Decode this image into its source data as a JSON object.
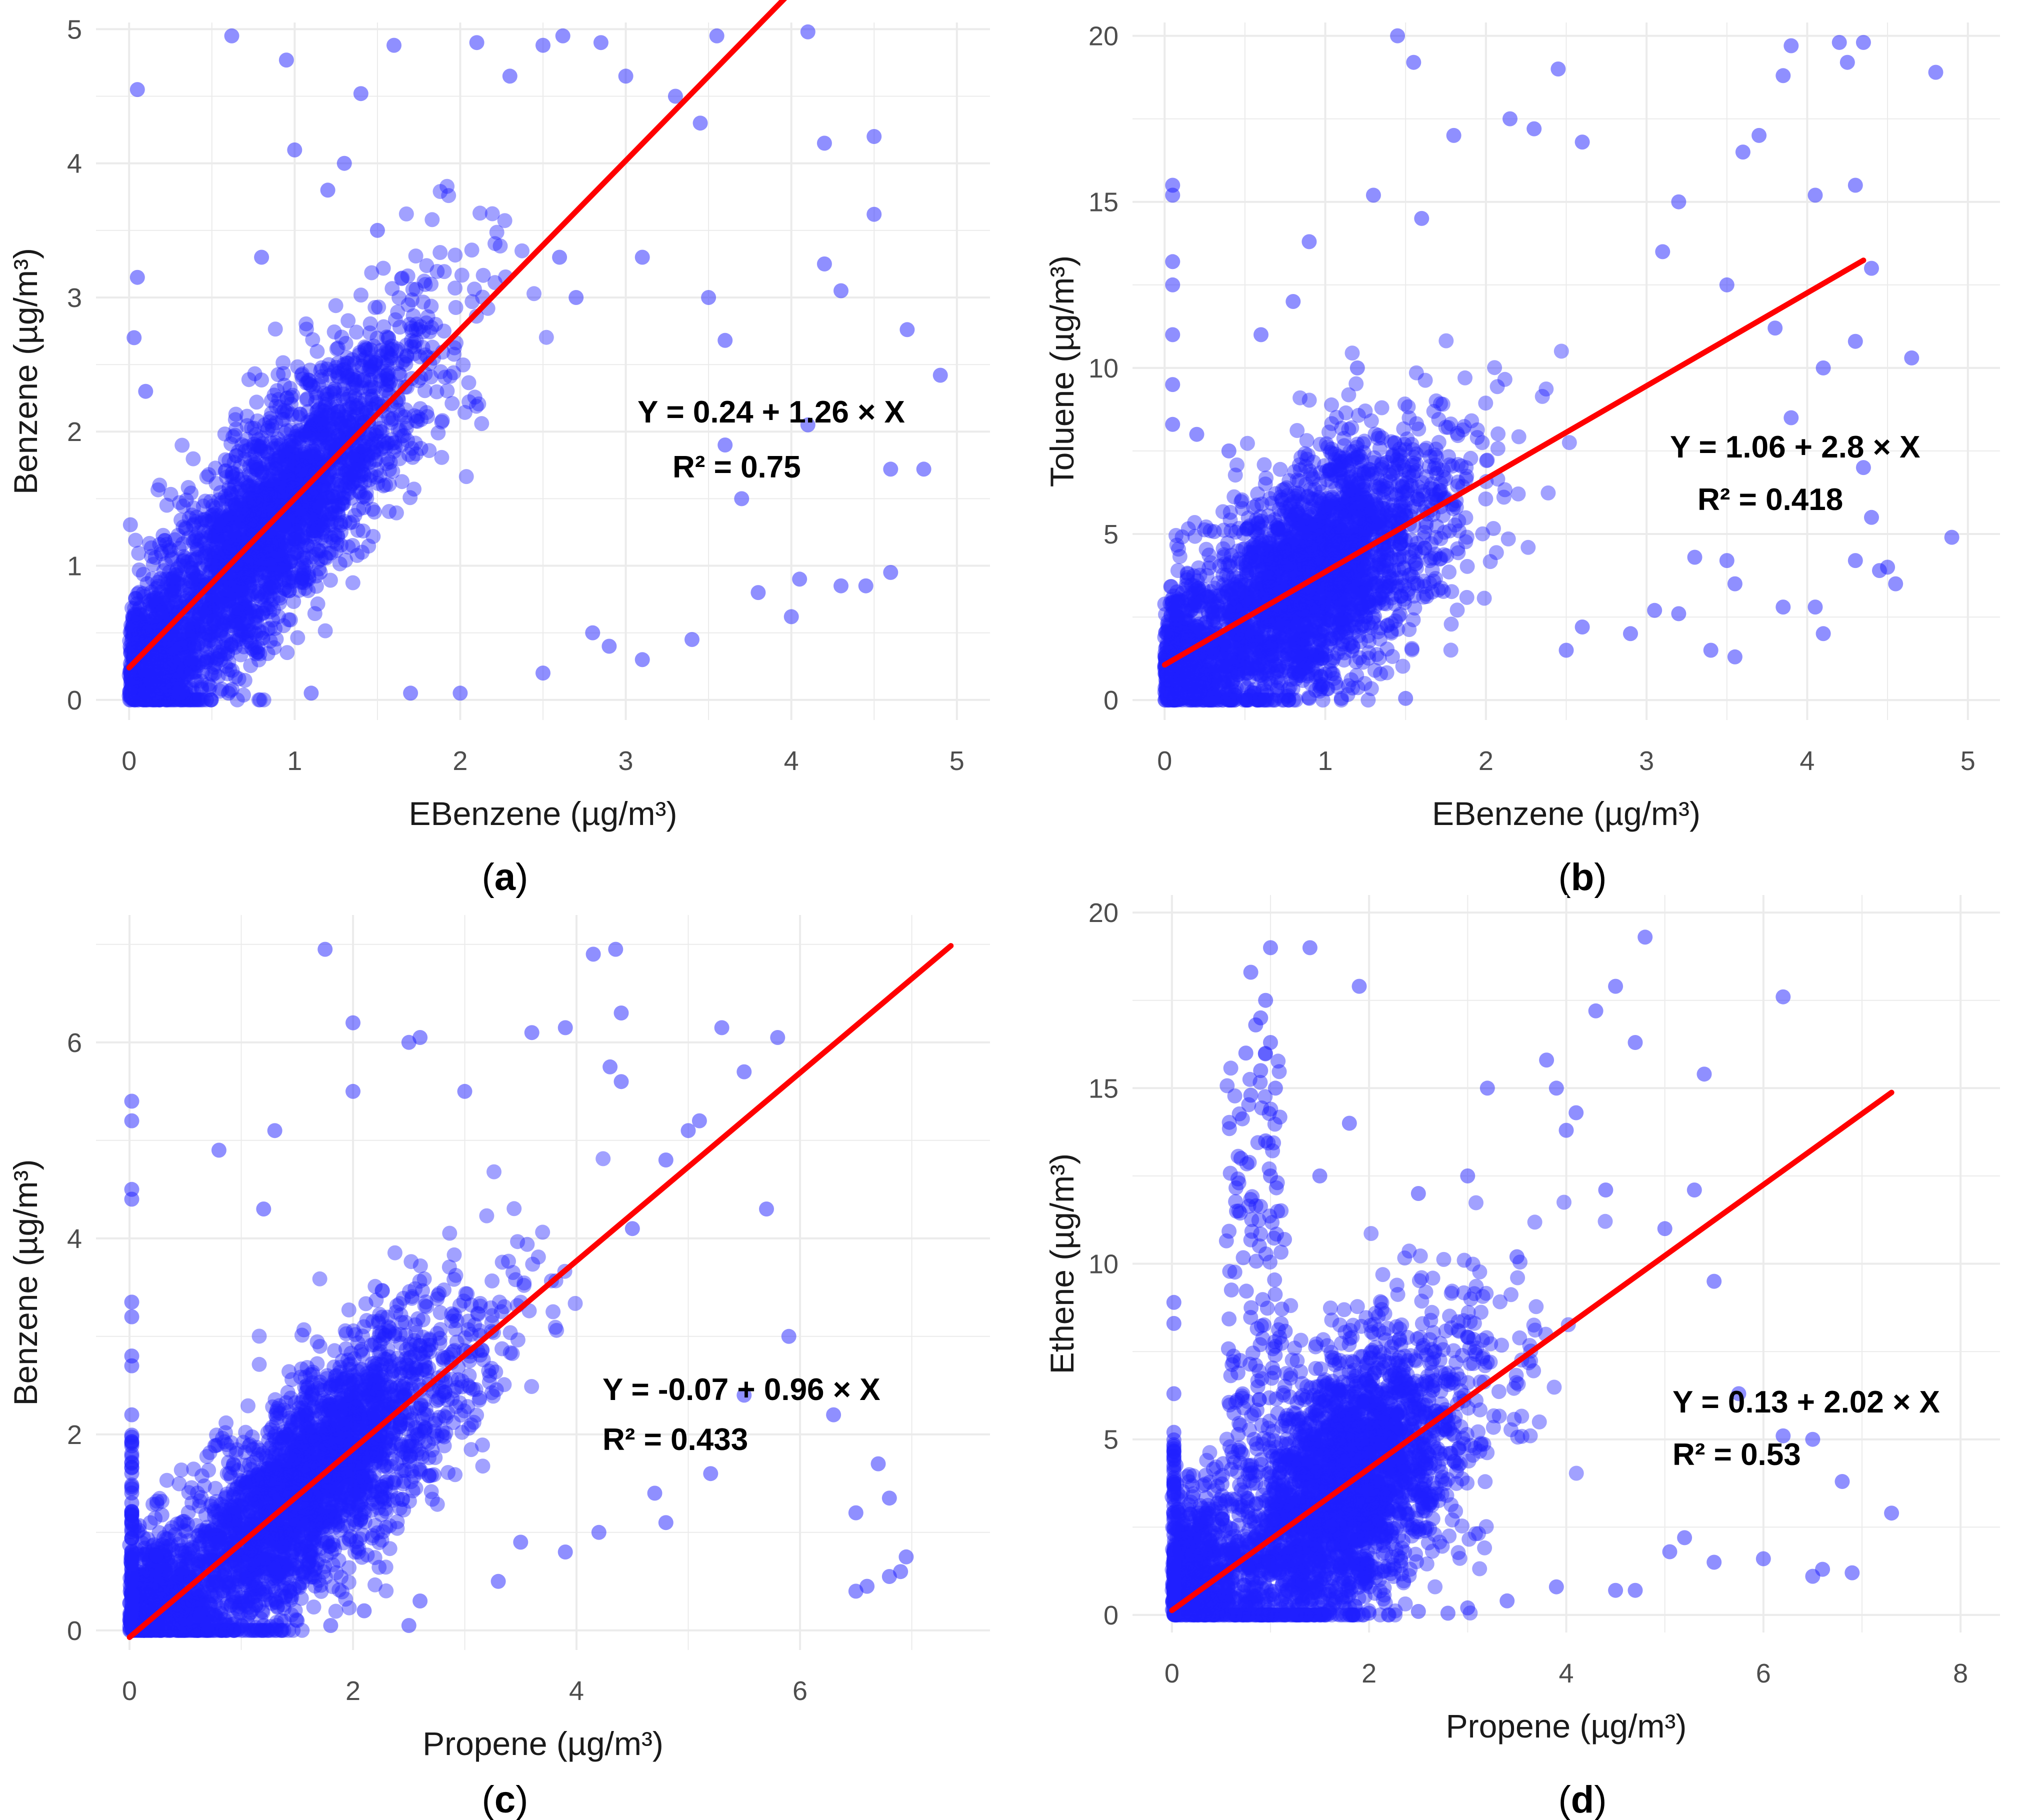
{
  "figure": {
    "panels": [
      "(a)",
      "(b)",
      "(c)",
      "(d)"
    ]
  },
  "colors": {
    "points": "#1f1fff",
    "fit_line": "#ff0000",
    "grid": "#ebebeb",
    "background": "#ffffff"
  },
  "chart_data": [
    {
      "id": "a",
      "type": "scatter",
      "panel_label": "a",
      "xlabel": "EBenzene (µg/m³)",
      "ylabel": "Benzene (µg/m³)",
      "xlim": [
        -0.2,
        5.2
      ],
      "ylim": [
        -0.15,
        5.05
      ],
      "xticks": [
        0,
        1,
        2,
        3,
        4,
        5
      ],
      "yticks": [
        0,
        1,
        2,
        3,
        4,
        5
      ],
      "grid": true,
      "fit": {
        "intercept": 0.24,
        "slope": 1.26,
        "x_range": [
          0,
          4.15
        ],
        "r2": 0.75
      },
      "equation_text": "Y = 0.24 + 1.26 × X",
      "r2_text": "R² = 0.75",
      "points": [
        [
          0.05,
          4.55
        ],
        [
          0.62,
          4.95
        ],
        [
          0.95,
          4.77
        ],
        [
          1.4,
          4.52
        ],
        [
          1.6,
          4.88
        ],
        [
          2.1,
          4.9
        ],
        [
          2.3,
          4.65
        ],
        [
          2.5,
          4.88
        ],
        [
          2.62,
          4.95
        ],
        [
          2.85,
          4.9
        ],
        [
          3.0,
          4.65
        ],
        [
          3.3,
          4.5
        ],
        [
          3.45,
          4.3
        ],
        [
          3.55,
          4.95
        ],
        [
          4.1,
          4.98
        ],
        [
          4.2,
          4.15
        ],
        [
          4.5,
          4.2
        ],
        [
          4.2,
          3.25
        ],
        [
          4.3,
          3.05
        ],
        [
          4.5,
          3.62
        ],
        [
          4.7,
          2.76
        ],
        [
          4.9,
          2.42
        ],
        [
          3.1,
          3.3
        ],
        [
          3.6,
          2.68
        ],
        [
          4.6,
          1.72
        ],
        [
          4.8,
          1.72
        ],
        [
          4.05,
          0.9
        ],
        [
          4.6,
          0.95
        ],
        [
          4.45,
          0.85
        ],
        [
          4.3,
          0.85
        ],
        [
          4.0,
          0.62
        ],
        [
          3.8,
          0.8
        ],
        [
          3.4,
          0.45
        ],
        [
          3.1,
          0.3
        ],
        [
          2.9,
          0.4
        ],
        [
          3.6,
          1.9
        ],
        [
          3.7,
          1.5
        ],
        [
          4.1,
          2.05
        ],
        [
          0.05,
          3.15
        ],
        [
          0.03,
          2.7
        ],
        [
          0.1,
          2.3
        ],
        [
          1.2,
          3.8
        ],
        [
          1.0,
          4.1
        ],
        [
          1.3,
          4.0
        ],
        [
          0.8,
          3.3
        ],
        [
          1.5,
          3.5
        ],
        [
          2.6,
          3.3
        ],
        [
          2.7,
          3.0
        ],
        [
          3.5,
          3.0
        ],
        [
          2.8,
          0.5
        ],
        [
          2.5,
          0.2
        ],
        [
          2.0,
          0.05
        ],
        [
          1.7,
          0.05
        ],
        [
          1.1,
          0.05
        ],
        [
          0.6,
          0.05
        ],
        [
          0.3,
          0.05
        ]
      ],
      "cloud": {
        "count": 2600,
        "x_mean": 0.85,
        "x_sd": 0.55,
        "x_max": 3.3,
        "resid_sd": 0.42,
        "y_max": 4.6
      }
    },
    {
      "id": "b",
      "type": "scatter",
      "panel_label": "b",
      "xlabel": "EBenzene (µg/m³)",
      "ylabel": "Toluene (µg/m³)",
      "xlim": [
        -0.2,
        5.2
      ],
      "ylim": [
        -0.6,
        20.4
      ],
      "xticks": [
        0,
        1,
        2,
        3,
        4,
        5
      ],
      "yticks": [
        0,
        5,
        10,
        15,
        20
      ],
      "grid": true,
      "fit": {
        "intercept": 1.06,
        "slope": 2.8,
        "x_range": [
          0,
          4.35
        ],
        "r2": 0.418
      },
      "equation_text": "Y = 1.06 + 2.8 × X",
      "r2_text": "R² = 0.418",
      "points": [
        [
          0.05,
          15.5
        ],
        [
          0.05,
          15.2
        ],
        [
          0.05,
          13.2
        ],
        [
          0.05,
          12.5
        ],
        [
          0.05,
          11.0
        ],
        [
          0.05,
          9.5
        ],
        [
          0.05,
          8.3
        ],
        [
          1.45,
          20.0
        ],
        [
          1.55,
          19.2
        ],
        [
          2.15,
          17.5
        ],
        [
          2.3,
          17.2
        ],
        [
          2.6,
          16.8
        ],
        [
          2.45,
          19.0
        ],
        [
          3.7,
          17.0
        ],
        [
          3.85,
          18.8
        ],
        [
          4.2,
          19.8
        ],
        [
          4.35,
          19.8
        ],
        [
          4.8,
          18.9
        ],
        [
          4.25,
          19.2
        ],
        [
          3.9,
          19.7
        ],
        [
          4.05,
          15.2
        ],
        [
          4.3,
          15.5
        ],
        [
          4.4,
          13.0
        ],
        [
          4.65,
          10.3
        ],
        [
          4.3,
          10.8
        ],
        [
          4.9,
          4.9
        ],
        [
          4.1,
          10.0
        ],
        [
          4.35,
          7.0
        ],
        [
          4.4,
          5.5
        ],
        [
          4.3,
          4.2
        ],
        [
          4.45,
          3.9
        ],
        [
          4.55,
          3.5
        ],
        [
          4.5,
          4.0
        ],
        [
          4.05,
          2.8
        ],
        [
          3.85,
          2.8
        ],
        [
          4.1,
          2.0
        ],
        [
          3.5,
          4.2
        ],
        [
          3.3,
          4.3
        ],
        [
          3.55,
          3.5
        ],
        [
          3.05,
          2.7
        ],
        [
          3.2,
          2.6
        ],
        [
          3.4,
          1.5
        ],
        [
          3.55,
          1.3
        ],
        [
          2.9,
          2.0
        ],
        [
          2.6,
          2.2
        ],
        [
          2.5,
          1.5
        ],
        [
          3.9,
          8.5
        ],
        [
          3.8,
          11.2
        ],
        [
          3.5,
          12.5
        ],
        [
          3.1,
          13.5
        ],
        [
          3.2,
          15.0
        ],
        [
          3.6,
          16.5
        ],
        [
          1.6,
          14.5
        ],
        [
          0.8,
          12.0
        ],
        [
          0.6,
          11.0
        ],
        [
          0.9,
          13.8
        ],
        [
          1.3,
          15.2
        ],
        [
          1.8,
          17.0
        ],
        [
          1.2,
          10.0
        ],
        [
          0.4,
          7.5
        ],
        [
          0.2,
          8.0
        ],
        [
          0.7,
          0.3
        ],
        [
          1.1,
          0.05
        ],
        [
          0.5,
          0.05
        ],
        [
          0.3,
          0.05
        ],
        [
          0.9,
          0.05
        ],
        [
          1.5,
          0.05
        ]
      ],
      "cloud": {
        "count": 2600,
        "x_mean": 0.9,
        "x_sd": 0.5,
        "x_max": 3.2,
        "resid_sd": 1.7,
        "y_max": 17.5
      }
    },
    {
      "id": "c",
      "type": "scatter",
      "panel_label": "c",
      "xlabel": "Propene (µg/m³)",
      "ylabel": "Benzene (µg/m³)",
      "xlim": [
        -0.3,
        7.7
      ],
      "ylim": [
        -0.2,
        7.3
      ],
      "xticks": [
        0,
        2,
        4,
        6
      ],
      "yticks": [
        0,
        2,
        4,
        6
      ],
      "grid": true,
      "fit": {
        "intercept": -0.07,
        "slope": 0.96,
        "x_range": [
          0,
          7.35
        ],
        "r2": 0.433
      },
      "equation_text": "Y = -0.07 + 0.96 × X",
      "r2_text": "R² = 0.433",
      "points": [
        [
          0.02,
          5.4
        ],
        [
          0.02,
          5.2
        ],
        [
          0.02,
          4.5
        ],
        [
          0.02,
          4.4
        ],
        [
          0.02,
          3.35
        ],
        [
          0.02,
          3.2
        ],
        [
          0.02,
          2.8
        ],
        [
          0.02,
          2.7
        ],
        [
          0.02,
          2.2
        ],
        [
          1.75,
          6.95
        ],
        [
          2.0,
          6.2
        ],
        [
          4.15,
          6.9
        ],
        [
          4.35,
          6.95
        ],
        [
          4.4,
          6.3
        ],
        [
          2.6,
          6.05
        ],
        [
          2.5,
          6.0
        ],
        [
          3.6,
          6.1
        ],
        [
          3.9,
          6.15
        ],
        [
          5.3,
          6.15
        ],
        [
          5.8,
          6.05
        ],
        [
          5.5,
          5.7
        ],
        [
          5.1,
          5.2
        ],
        [
          4.3,
          5.75
        ],
        [
          4.4,
          5.6
        ],
        [
          3.0,
          5.5
        ],
        [
          2.0,
          5.5
        ],
        [
          1.3,
          5.1
        ],
        [
          0.8,
          4.9
        ],
        [
          1.2,
          4.3
        ],
        [
          6.95,
          0.75
        ],
        [
          6.6,
          0.45
        ],
        [
          6.8,
          0.55
        ],
        [
          6.9,
          0.6
        ],
        [
          6.5,
          0.4
        ],
        [
          6.5,
          1.2
        ],
        [
          6.8,
          1.35
        ],
        [
          6.3,
          2.2
        ],
        [
          6.7,
          1.7
        ],
        [
          5.9,
          3.0
        ],
        [
          5.7,
          4.3
        ],
        [
          4.8,
          4.8
        ],
        [
          5.0,
          5.1
        ],
        [
          4.5,
          4.1
        ],
        [
          5.5,
          2.4
        ],
        [
          5.2,
          1.6
        ],
        [
          4.8,
          1.1
        ],
        [
          4.7,
          1.4
        ],
        [
          4.2,
          1.0
        ],
        [
          3.9,
          0.8
        ],
        [
          3.5,
          0.9
        ],
        [
          3.3,
          0.5
        ],
        [
          2.6,
          0.3
        ],
        [
          2.1,
          0.2
        ],
        [
          1.5,
          0.1
        ],
        [
          1.0,
          0.05
        ],
        [
          0.7,
          0.05
        ],
        [
          0.5,
          0.05
        ],
        [
          1.2,
          0.05
        ],
        [
          1.8,
          0.05
        ],
        [
          2.5,
          0.05
        ]
      ],
      "cloud": {
        "count": 2800,
        "x_mean": 1.6,
        "x_sd": 0.85,
        "x_max": 5.2,
        "resid_sd": 0.55,
        "y_max": 5.0
      },
      "stack_column": {
        "x": 0.02,
        "y_max": 2.0,
        "count": 60
      }
    },
    {
      "id": "d",
      "type": "scatter",
      "panel_label": "d",
      "xlabel": "Propene (µg/m³)",
      "ylabel": "Ethene (µg/m³)",
      "xlim": [
        -0.4,
        8.4
      ],
      "ylim": [
        -0.5,
        20.5
      ],
      "xticks": [
        0,
        2,
        4,
        6,
        8
      ],
      "yticks": [
        0,
        5,
        10,
        15,
        20
      ],
      "grid": true,
      "fit": {
        "intercept": 0.13,
        "slope": 2.02,
        "x_range": [
          0,
          7.3
        ],
        "r2": 0.53
      },
      "equation_text": "Y = 0.13 + 2.02 × X",
      "r2_text": "R² = 0.53",
      "points": [
        [
          0.8,
          18.3
        ],
        [
          0.9,
          17.0
        ],
        [
          1.0,
          19.0
        ],
        [
          0.95,
          17.5
        ],
        [
          0.85,
          16.8
        ],
        [
          0.75,
          16.0
        ],
        [
          1.0,
          16.3
        ],
        [
          0.9,
          15.5
        ],
        [
          1.05,
          15.0
        ],
        [
          0.8,
          14.8
        ],
        [
          0.95,
          13.5
        ],
        [
          0.7,
          13.0
        ],
        [
          1.0,
          12.5
        ],
        [
          1.4,
          19.0
        ],
        [
          1.9,
          17.9
        ],
        [
          4.5,
          17.9
        ],
        [
          4.8,
          19.3
        ],
        [
          4.3,
          17.2
        ],
        [
          4.7,
          16.3
        ],
        [
          6.2,
          17.6
        ],
        [
          3.8,
          15.8
        ],
        [
          3.9,
          15.0
        ],
        [
          3.2,
          15.0
        ],
        [
          4.1,
          14.3
        ],
        [
          4.0,
          13.8
        ],
        [
          5.4,
          15.4
        ],
        [
          5.3,
          12.1
        ],
        [
          5.5,
          9.5
        ],
        [
          5.0,
          11.0
        ],
        [
          4.4,
          12.1
        ],
        [
          5.75,
          6.3
        ],
        [
          6.2,
          5.1
        ],
        [
          6.5,
          5.0
        ],
        [
          7.3,
          2.9
        ],
        [
          6.8,
          3.8
        ],
        [
          6.9,
          1.2
        ],
        [
          6.6,
          1.3
        ],
        [
          6.5,
          1.1
        ],
        [
          6.0,
          1.6
        ],
        [
          5.5,
          1.5
        ],
        [
          5.2,
          2.2
        ],
        [
          5.05,
          1.8
        ],
        [
          4.7,
          0.7
        ],
        [
          4.5,
          0.7
        ],
        [
          3.9,
          0.8
        ],
        [
          3.4,
          0.4
        ],
        [
          3.0,
          0.2
        ],
        [
          2.5,
          0.1
        ],
        [
          2.0,
          0.05
        ],
        [
          1.6,
          0.05
        ],
        [
          1.2,
          0.05
        ],
        [
          2.8,
          0.05
        ],
        [
          0.02,
          8.9
        ],
        [
          0.02,
          8.3
        ],
        [
          0.02,
          6.3
        ],
        [
          0.02,
          5.2
        ],
        [
          0.02,
          4.8
        ],
        [
          1.5,
          12.5
        ],
        [
          1.8,
          14.0
        ],
        [
          2.5,
          12.0
        ],
        [
          3.0,
          12.5
        ],
        [
          3.5,
          10.2
        ]
      ],
      "cloud": {
        "count": 2800,
        "x_mean": 1.7,
        "x_sd": 0.8,
        "x_max": 5.0,
        "resid_sd": 1.9,
        "y_max": 15.0
      },
      "stack_column": {
        "x": 0.02,
        "y_max": 5.0,
        "count": 60
      },
      "spike": {
        "x_min": 0.55,
        "x_max": 1.15,
        "y_min": 4.0,
        "y_max": 16.0,
        "count": 140
      }
    }
  ]
}
